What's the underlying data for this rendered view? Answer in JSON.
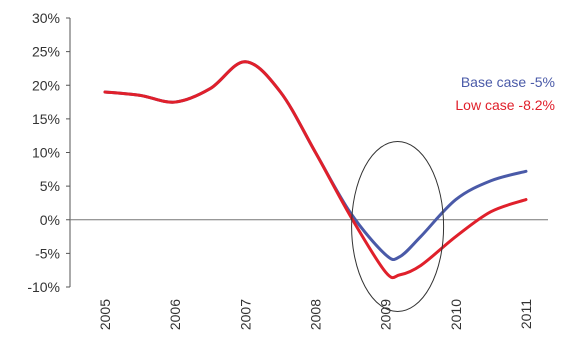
{
  "chart_data": {
    "type": "line",
    "title": "",
    "xlabel": "",
    "ylabel": "",
    "x_categories": [
      "2005",
      "2006",
      "2007",
      "2008",
      "2009",
      "2010",
      "2011"
    ],
    "y_ticks": [
      "30%",
      "25%",
      "20%",
      "15%",
      "10%",
      "5%",
      "0%",
      "-5%",
      "-10%"
    ],
    "y_tick_values": [
      30,
      25,
      20,
      15,
      10,
      5,
      0,
      -5,
      -10
    ],
    "ylim": [
      -10,
      30
    ],
    "grid": false,
    "legend_position": "right",
    "series": [
      {
        "name": "Base case -5%",
        "color": "#4a5aa8",
        "points": [
          [
            2005.0,
            19
          ],
          [
            2005.5,
            18.5
          ],
          [
            2006.0,
            17.5
          ],
          [
            2006.5,
            19.5
          ],
          [
            2007.0,
            23.5
          ],
          [
            2007.5,
            19
          ],
          [
            2008.0,
            10
          ],
          [
            2008.5,
            1
          ],
          [
            2009.0,
            -5.2
          ],
          [
            2009.2,
            -5.5
          ],
          [
            2009.5,
            -2.5
          ],
          [
            2010.0,
            3
          ],
          [
            2010.5,
            5.8
          ],
          [
            2011.0,
            7.2
          ]
        ]
      },
      {
        "name": "Low case -8.2%",
        "color": "#e0202b",
        "points": [
          [
            2005.0,
            19
          ],
          [
            2005.5,
            18.5
          ],
          [
            2006.0,
            17.5
          ],
          [
            2006.5,
            19.5
          ],
          [
            2007.0,
            23.5
          ],
          [
            2007.5,
            19
          ],
          [
            2008.0,
            10
          ],
          [
            2008.5,
            0.5
          ],
          [
            2009.0,
            -7.8
          ],
          [
            2009.2,
            -8.2
          ],
          [
            2009.5,
            -6.8
          ],
          [
            2010.0,
            -2.5
          ],
          [
            2010.5,
            1.2
          ],
          [
            2011.0,
            3
          ]
        ]
      }
    ],
    "annotation": {
      "type": "ellipse",
      "around": "2009 trough"
    }
  }
}
